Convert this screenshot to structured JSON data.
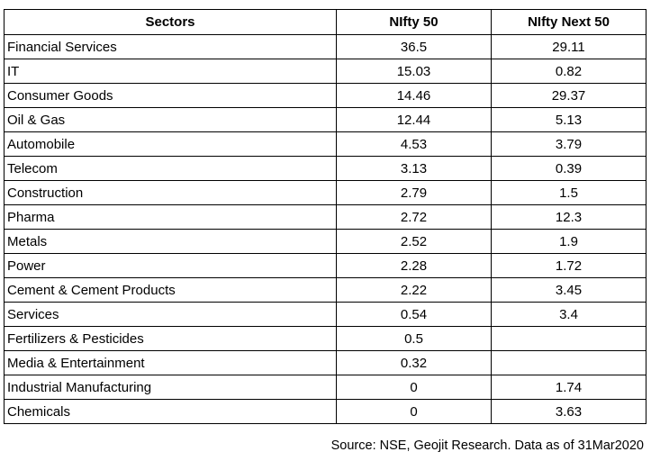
{
  "table": {
    "headers": [
      "Sectors",
      "NIfty 50",
      "NIfty Next 50"
    ],
    "rows": [
      [
        "Financial Services",
        "36.5",
        "29.11"
      ],
      [
        "IT",
        "15.03",
        "0.82"
      ],
      [
        "Consumer Goods",
        "14.46",
        "29.37"
      ],
      [
        "Oil & Gas",
        "12.44",
        "5.13"
      ],
      [
        "Automobile",
        "4.53",
        "3.79"
      ],
      [
        "Telecom",
        "3.13",
        "0.39"
      ],
      [
        "Construction",
        "2.79",
        "1.5"
      ],
      [
        "Pharma",
        "2.72",
        "12.3"
      ],
      [
        "Metals",
        "2.52",
        "1.9"
      ],
      [
        "Power",
        "2.28",
        "1.72"
      ],
      [
        "Cement & Cement Products",
        "2.22",
        "3.45"
      ],
      [
        "Services",
        "0.54",
        "3.4"
      ],
      [
        "Fertilizers & Pesticides",
        "0.5",
        ""
      ],
      [
        "Media & Entertainment",
        "0.32",
        ""
      ],
      [
        "Industrial Manufacturing",
        "0",
        "1.74"
      ],
      [
        "Chemicals",
        "0",
        "3.63"
      ]
    ]
  },
  "footer": {
    "source": "Source: NSE, Geojit Research. Data as of 31Mar2020"
  }
}
